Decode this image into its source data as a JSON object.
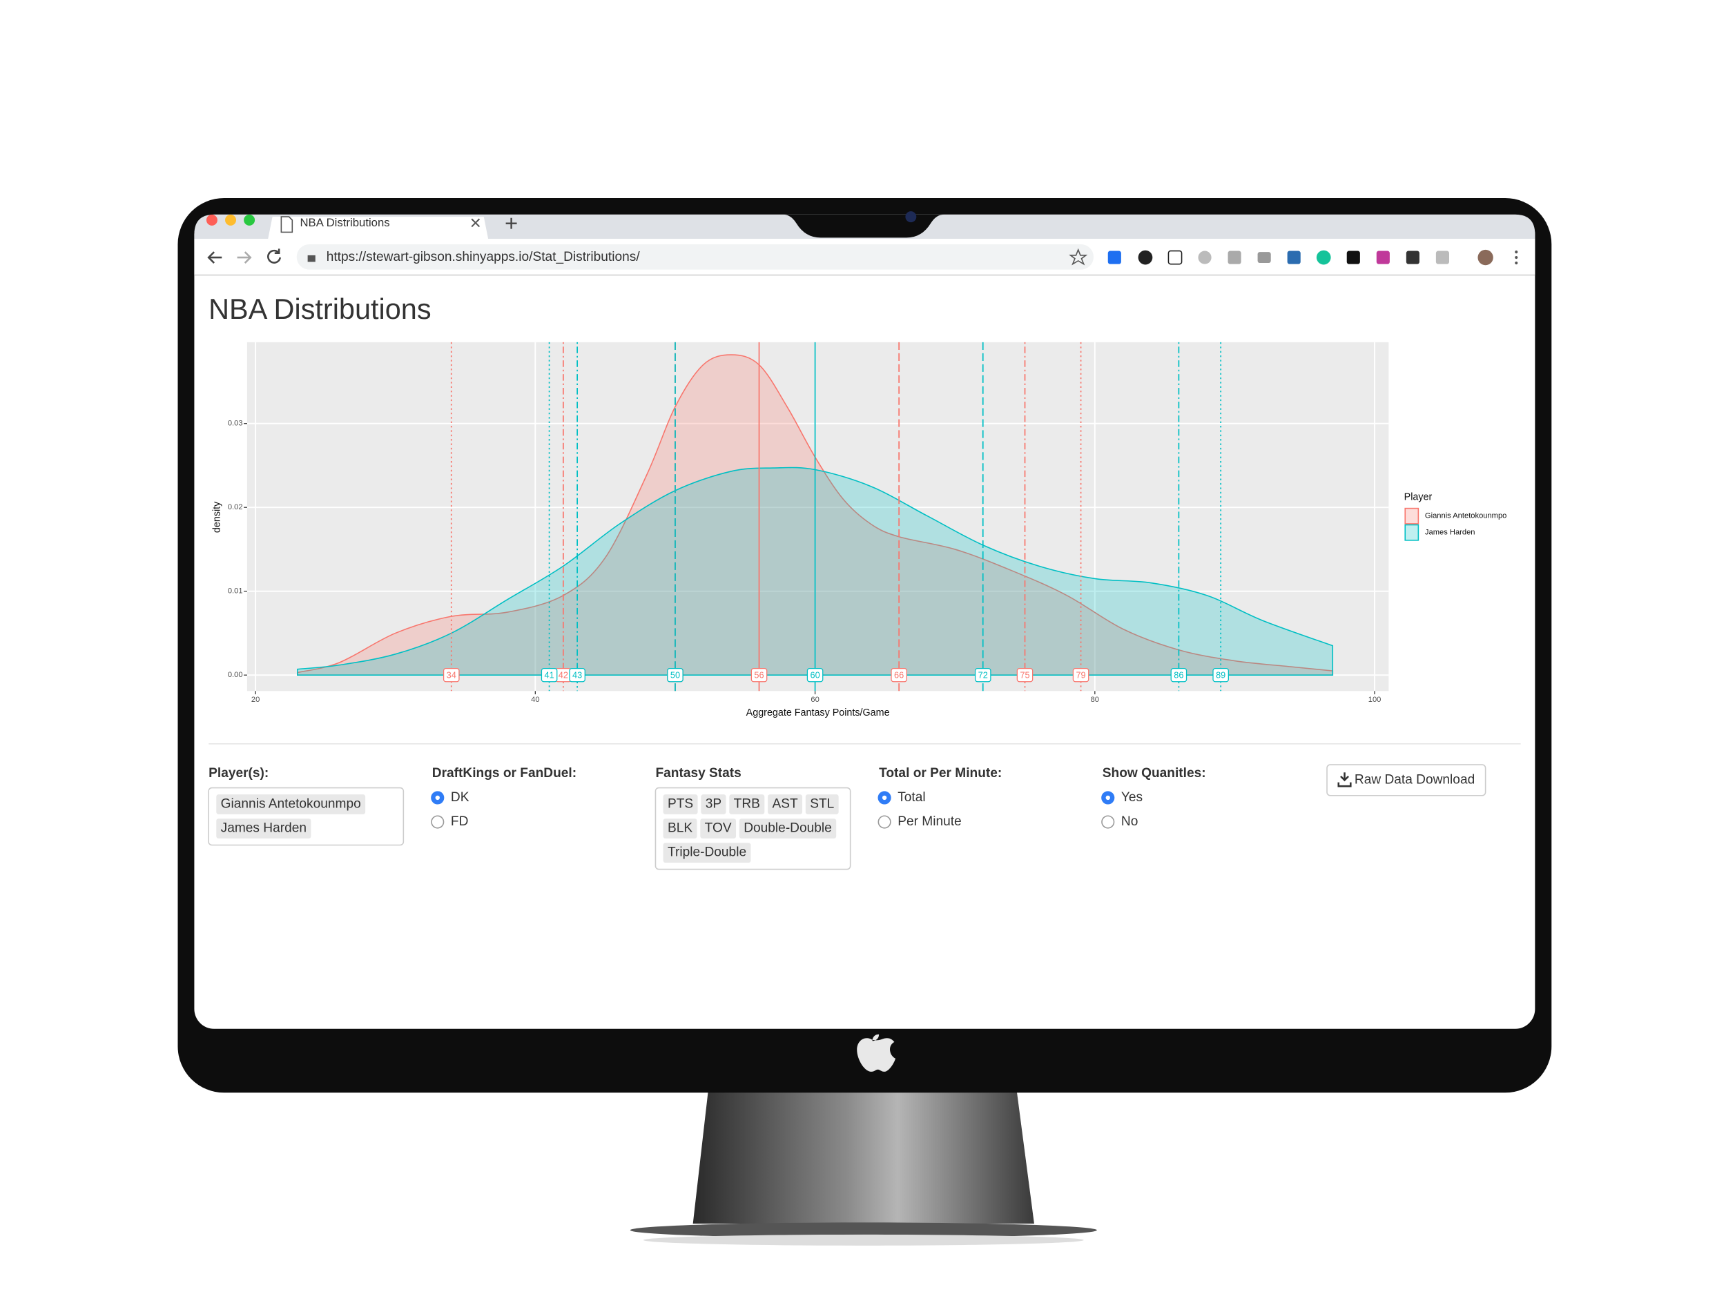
{
  "browser": {
    "tab_title": "NBA Distributions",
    "url": "https://stewart-gibson.shinyapps.io/Stat_Distributions/"
  },
  "app_title": "NBA Distributions",
  "chart_data": {
    "type": "density",
    "x_label": "Aggregate Fantasy Points/Game",
    "y_label": "density",
    "legend_title": "Player",
    "legend": "right",
    "grid": true,
    "fill_opacity": 0.25,
    "xlim": [
      19.4,
      101
    ],
    "ylim": [
      -0.0019,
      0.0397
    ],
    "xticks": [
      20,
      40,
      60,
      80,
      100
    ],
    "yticks": [
      {
        "value": 0,
        "label": "0.00"
      },
      {
        "value": 0.01,
        "label": "0.01"
      },
      {
        "value": 0.02,
        "label": "0.02"
      },
      {
        "value": 0.03,
        "label": "0.03"
      }
    ],
    "quantile_linetypes": [
      "dotted",
      "dotdash",
      "longdash",
      "solid",
      "longdash",
      "dotdash",
      "dotted"
    ],
    "series": [
      {
        "name": "Giannis Antetokounmpo",
        "color": "#f8766d",
        "x": [
          23,
          26,
          30,
          34,
          38,
          42,
          45,
          48,
          50,
          52,
          54,
          56,
          58,
          60,
          62,
          64,
          66,
          70,
          74,
          78,
          82,
          86,
          90,
          94,
          97
        ],
        "values": [
          0.0003,
          0.0015,
          0.005,
          0.007,
          0.0075,
          0.0095,
          0.014,
          0.024,
          0.032,
          0.037,
          0.0382,
          0.037,
          0.032,
          0.026,
          0.021,
          0.018,
          0.0165,
          0.015,
          0.0125,
          0.0095,
          0.0055,
          0.003,
          0.0017,
          0.001,
          0.0005
        ],
        "quantiles": [
          34,
          42,
          50,
          56,
          66,
          75,
          79
        ]
      },
      {
        "name": "James Harden",
        "color": "#00bfc4",
        "x": [
          23,
          26,
          30,
          34,
          38,
          42,
          46,
          50,
          54,
          57,
          60,
          64,
          68,
          72,
          76,
          80,
          84,
          88,
          92,
          97
        ],
        "values": [
          0.0007,
          0.0012,
          0.0025,
          0.005,
          0.009,
          0.013,
          0.018,
          0.022,
          0.0243,
          0.0247,
          0.0245,
          0.0225,
          0.019,
          0.0155,
          0.013,
          0.0115,
          0.011,
          0.0095,
          0.0065,
          0.0035
        ],
        "quantiles": [
          41,
          43,
          50,
          60,
          72,
          86,
          89
        ]
      }
    ]
  },
  "controls": {
    "players": {
      "label": "Player(s):",
      "selected": [
        "Giannis Antetokounmpo",
        "James Harden"
      ]
    },
    "site": {
      "label": "DraftKings or FanDuel:",
      "options": [
        "DK",
        "FD"
      ],
      "selected": "DK"
    },
    "stats": {
      "label": "Fantasy Stats",
      "selected": [
        "PTS",
        "3P",
        "TRB",
        "AST",
        "STL",
        "BLK",
        "TOV",
        "Double-Double",
        "Triple-Double"
      ]
    },
    "scope": {
      "label": "Total or Per Minute:",
      "options": [
        "Total",
        "Per Minute"
      ],
      "selected": "Total"
    },
    "quantiles": {
      "label": "Show Quanitles:",
      "options": [
        "Yes",
        "No"
      ],
      "selected": "Yes"
    },
    "download_button": "Raw Data Download"
  }
}
